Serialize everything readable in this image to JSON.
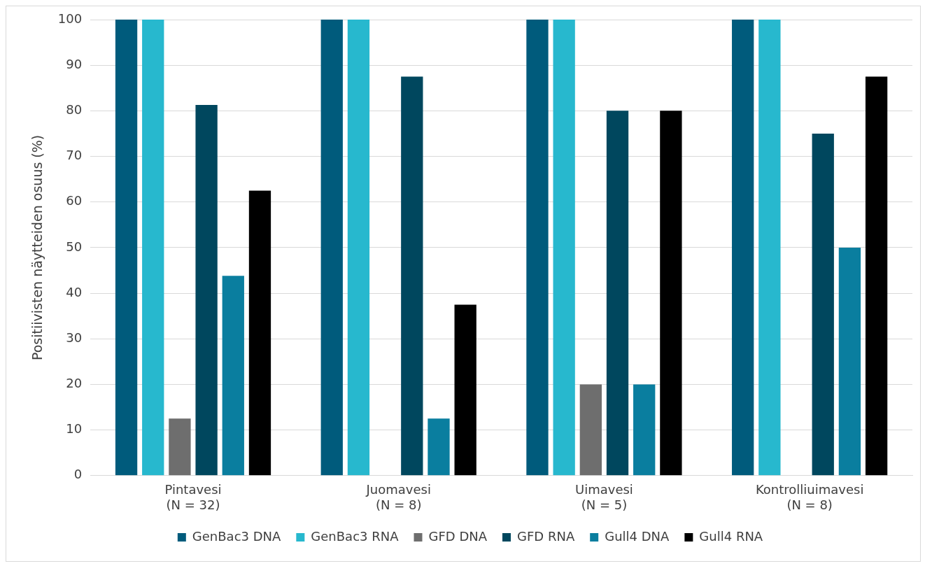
{
  "chart_data": {
    "type": "bar",
    "ylabel": "Positiivisten näytteiden osuus (%)",
    "categories": [
      "Pintavesi\n(N = 32)",
      "Juomavesi\n(N = 8)",
      "Uimavesi\n(N = 5)",
      "Kontrolliuimavesi\n(N = 8)"
    ],
    "series": [
      {
        "name": "GenBac3 DNA",
        "color": "#005b7c",
        "values": [
          100,
          100,
          100,
          100
        ]
      },
      {
        "name": "GenBac3 RNA",
        "color": "#27b8ce",
        "values": [
          100,
          100,
          100,
          100
        ]
      },
      {
        "name": "GFD DNA",
        "color": "#6e6e6e",
        "values": [
          12.5,
          0,
          20,
          0
        ]
      },
      {
        "name": "GFD RNA",
        "color": "#00475e",
        "values": [
          81.3,
          87.5,
          80,
          75
        ]
      },
      {
        "name": "Gull4 DNA",
        "color": "#0a7e9f",
        "values": [
          43.8,
          12.5,
          20,
          50
        ]
      },
      {
        "name": "Gull4 RNA",
        "color": "#000000",
        "values": [
          62.5,
          37.5,
          80,
          87.5
        ]
      }
    ],
    "ylim": [
      0,
      100
    ],
    "yticks": [
      0,
      10,
      20,
      30,
      40,
      50,
      60,
      70,
      80,
      90,
      100
    ],
    "grid": "y",
    "legend": "bottom"
  }
}
